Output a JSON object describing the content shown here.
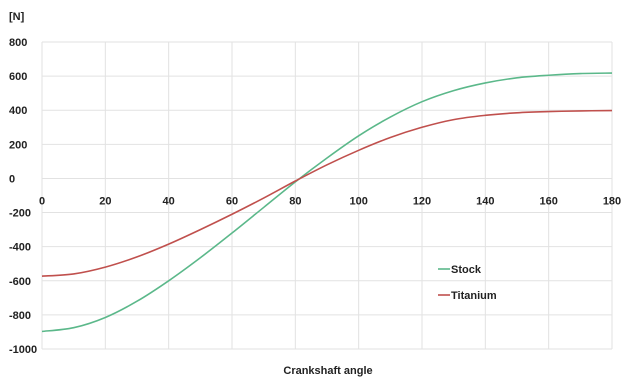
{
  "chart_data": {
    "type": "line",
    "title": "",
    "xlabel": "Crankshaft angle",
    "ylabel": "[N]",
    "xlim": [
      0,
      180
    ],
    "ylim": [
      -1000,
      800
    ],
    "x_ticks": [
      "0",
      "20",
      "40",
      "60",
      "80",
      "100",
      "120",
      "140",
      "160",
      "180"
    ],
    "y_ticks": [
      "800",
      "600",
      "400",
      "200",
      "0",
      "-200",
      "-400",
      "-600",
      "-800",
      "-1000"
    ],
    "grid": true,
    "legend_position": "right",
    "x": [
      0,
      10,
      20,
      30,
      40,
      50,
      60,
      70,
      80,
      90,
      100,
      110,
      120,
      130,
      140,
      150,
      160,
      170,
      180
    ],
    "series": [
      {
        "name": "Stock",
        "color": "#5bb88a",
        "values": [
          -897,
          -875,
          -815,
          -720,
          -600,
          -465,
          -320,
          -170,
          -20,
          120,
          250,
          360,
          450,
          515,
          560,
          590,
          605,
          615,
          618
        ]
      },
      {
        "name": "Titanium",
        "color": "#c0504d",
        "values": [
          -573,
          -560,
          -520,
          -460,
          -385,
          -300,
          -210,
          -115,
          -15,
          80,
          165,
          240,
          300,
          345,
          370,
          385,
          392,
          396,
          398
        ]
      }
    ]
  }
}
